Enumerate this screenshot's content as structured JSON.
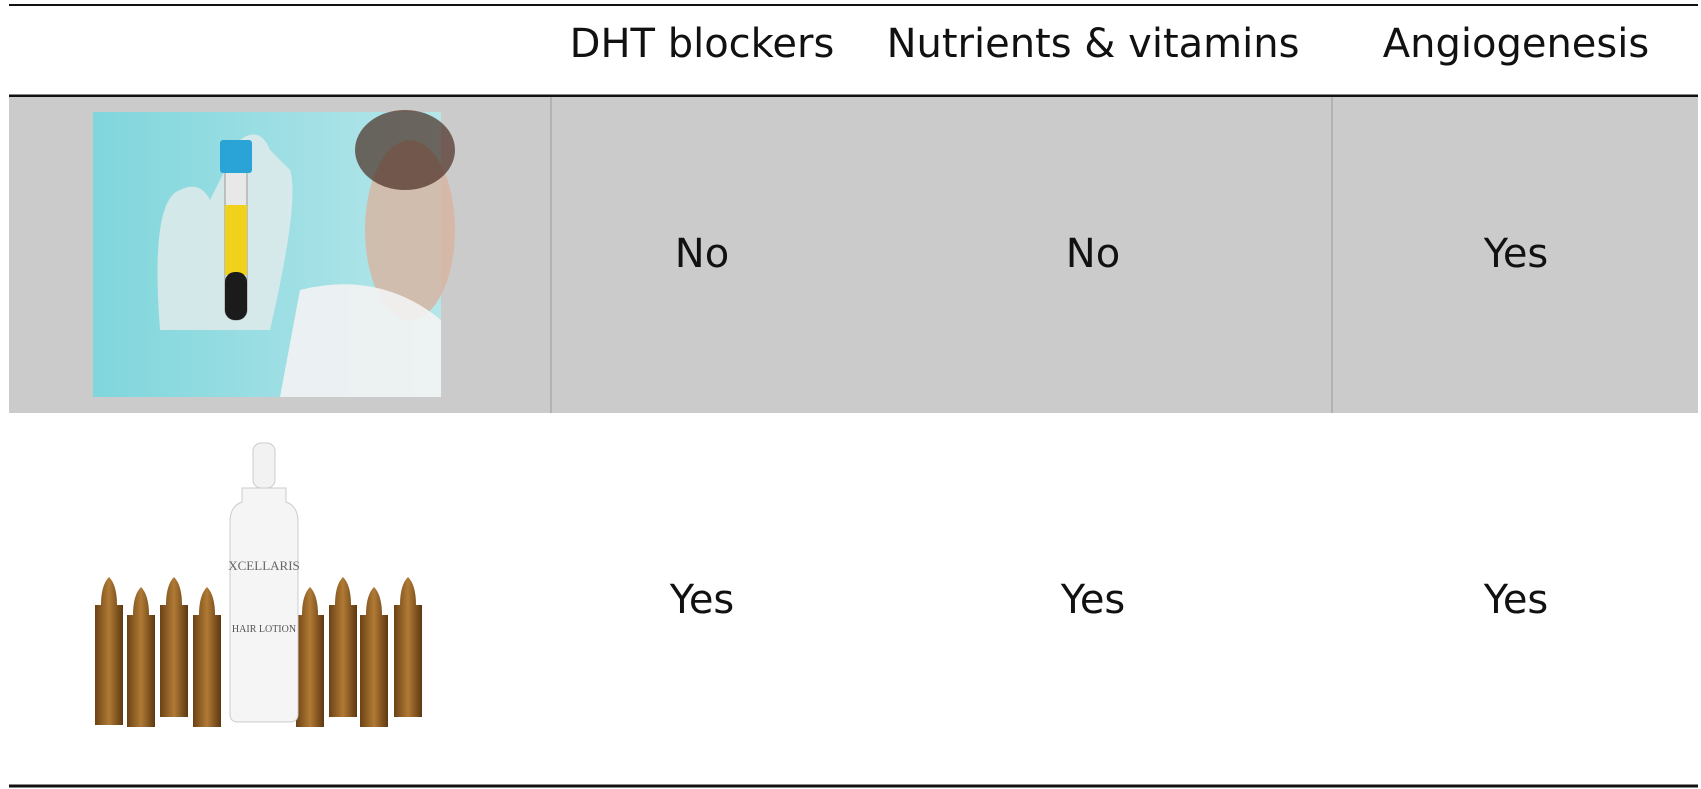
{
  "table": {
    "columns": [
      "DHT blockers",
      "Nutrients & vitamins",
      "Angiogenesis"
    ],
    "rows": [
      [
        "No",
        "No",
        "Yes"
      ],
      [
        "Yes",
        "Yes",
        "Yes"
      ]
    ]
  },
  "product_label": {
    "brand": "XCELLARIS",
    "name": "HAIR LOTION"
  }
}
